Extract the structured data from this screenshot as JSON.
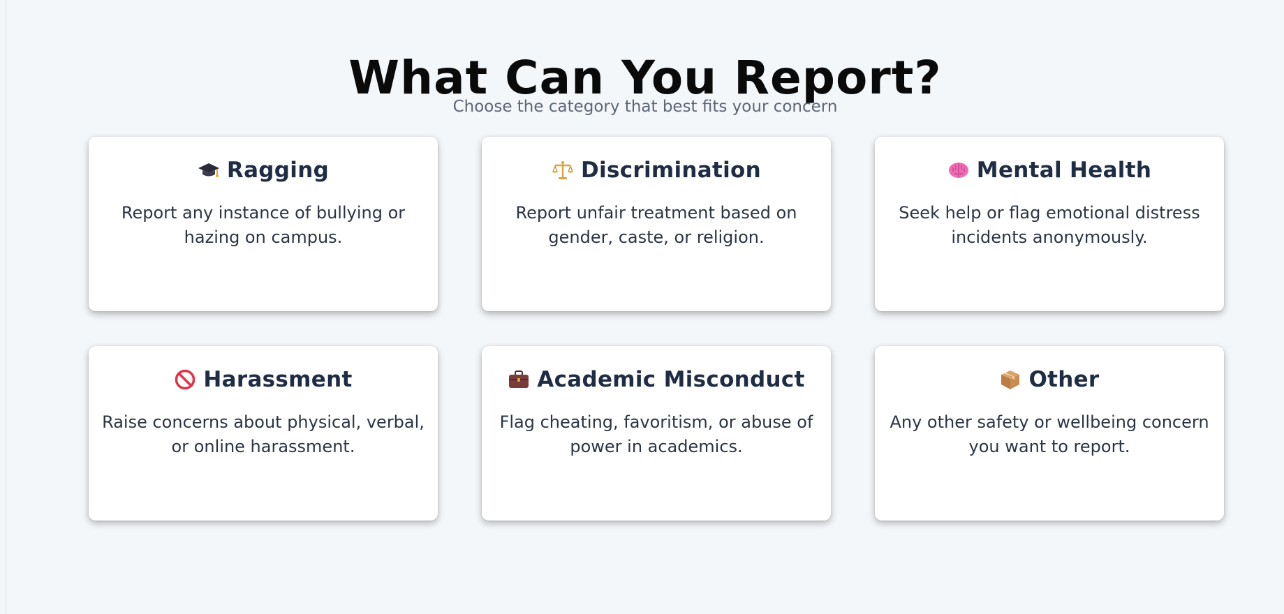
{
  "header": {
    "title": "What Can You Report?",
    "subtitle": "Choose the category that best fits your concern"
  },
  "categories": [
    {
      "icon": "graduation-cap-icon",
      "title": "Ragging",
      "description": "Report any instance of bullying or hazing on campus."
    },
    {
      "icon": "balance-scale-icon",
      "title": "Discrimination",
      "description": "Report unfair treatment based on gender, caste, or religion."
    },
    {
      "icon": "brain-icon",
      "title": "Mental Health",
      "description": "Seek help or flag emotional distress incidents anonymously."
    },
    {
      "icon": "prohibited-icon",
      "title": "Harassment",
      "description": "Raise concerns about physical, verbal, or online harassment."
    },
    {
      "icon": "briefcase-icon",
      "title": "Academic Misconduct",
      "description": "Flag cheating, favoritism, or abuse of power in academics."
    },
    {
      "icon": "package-icon",
      "title": "Other",
      "description": "Any other safety or wellbeing concern you want to report."
    }
  ],
  "colors": {
    "background": "#f4f7fa",
    "card_title": "#1f2d44",
    "card_text": "#2b3444",
    "subtitle": "#5b6677",
    "prohibited_red": "#e0334a",
    "brain_pink": "#f06bb4"
  }
}
